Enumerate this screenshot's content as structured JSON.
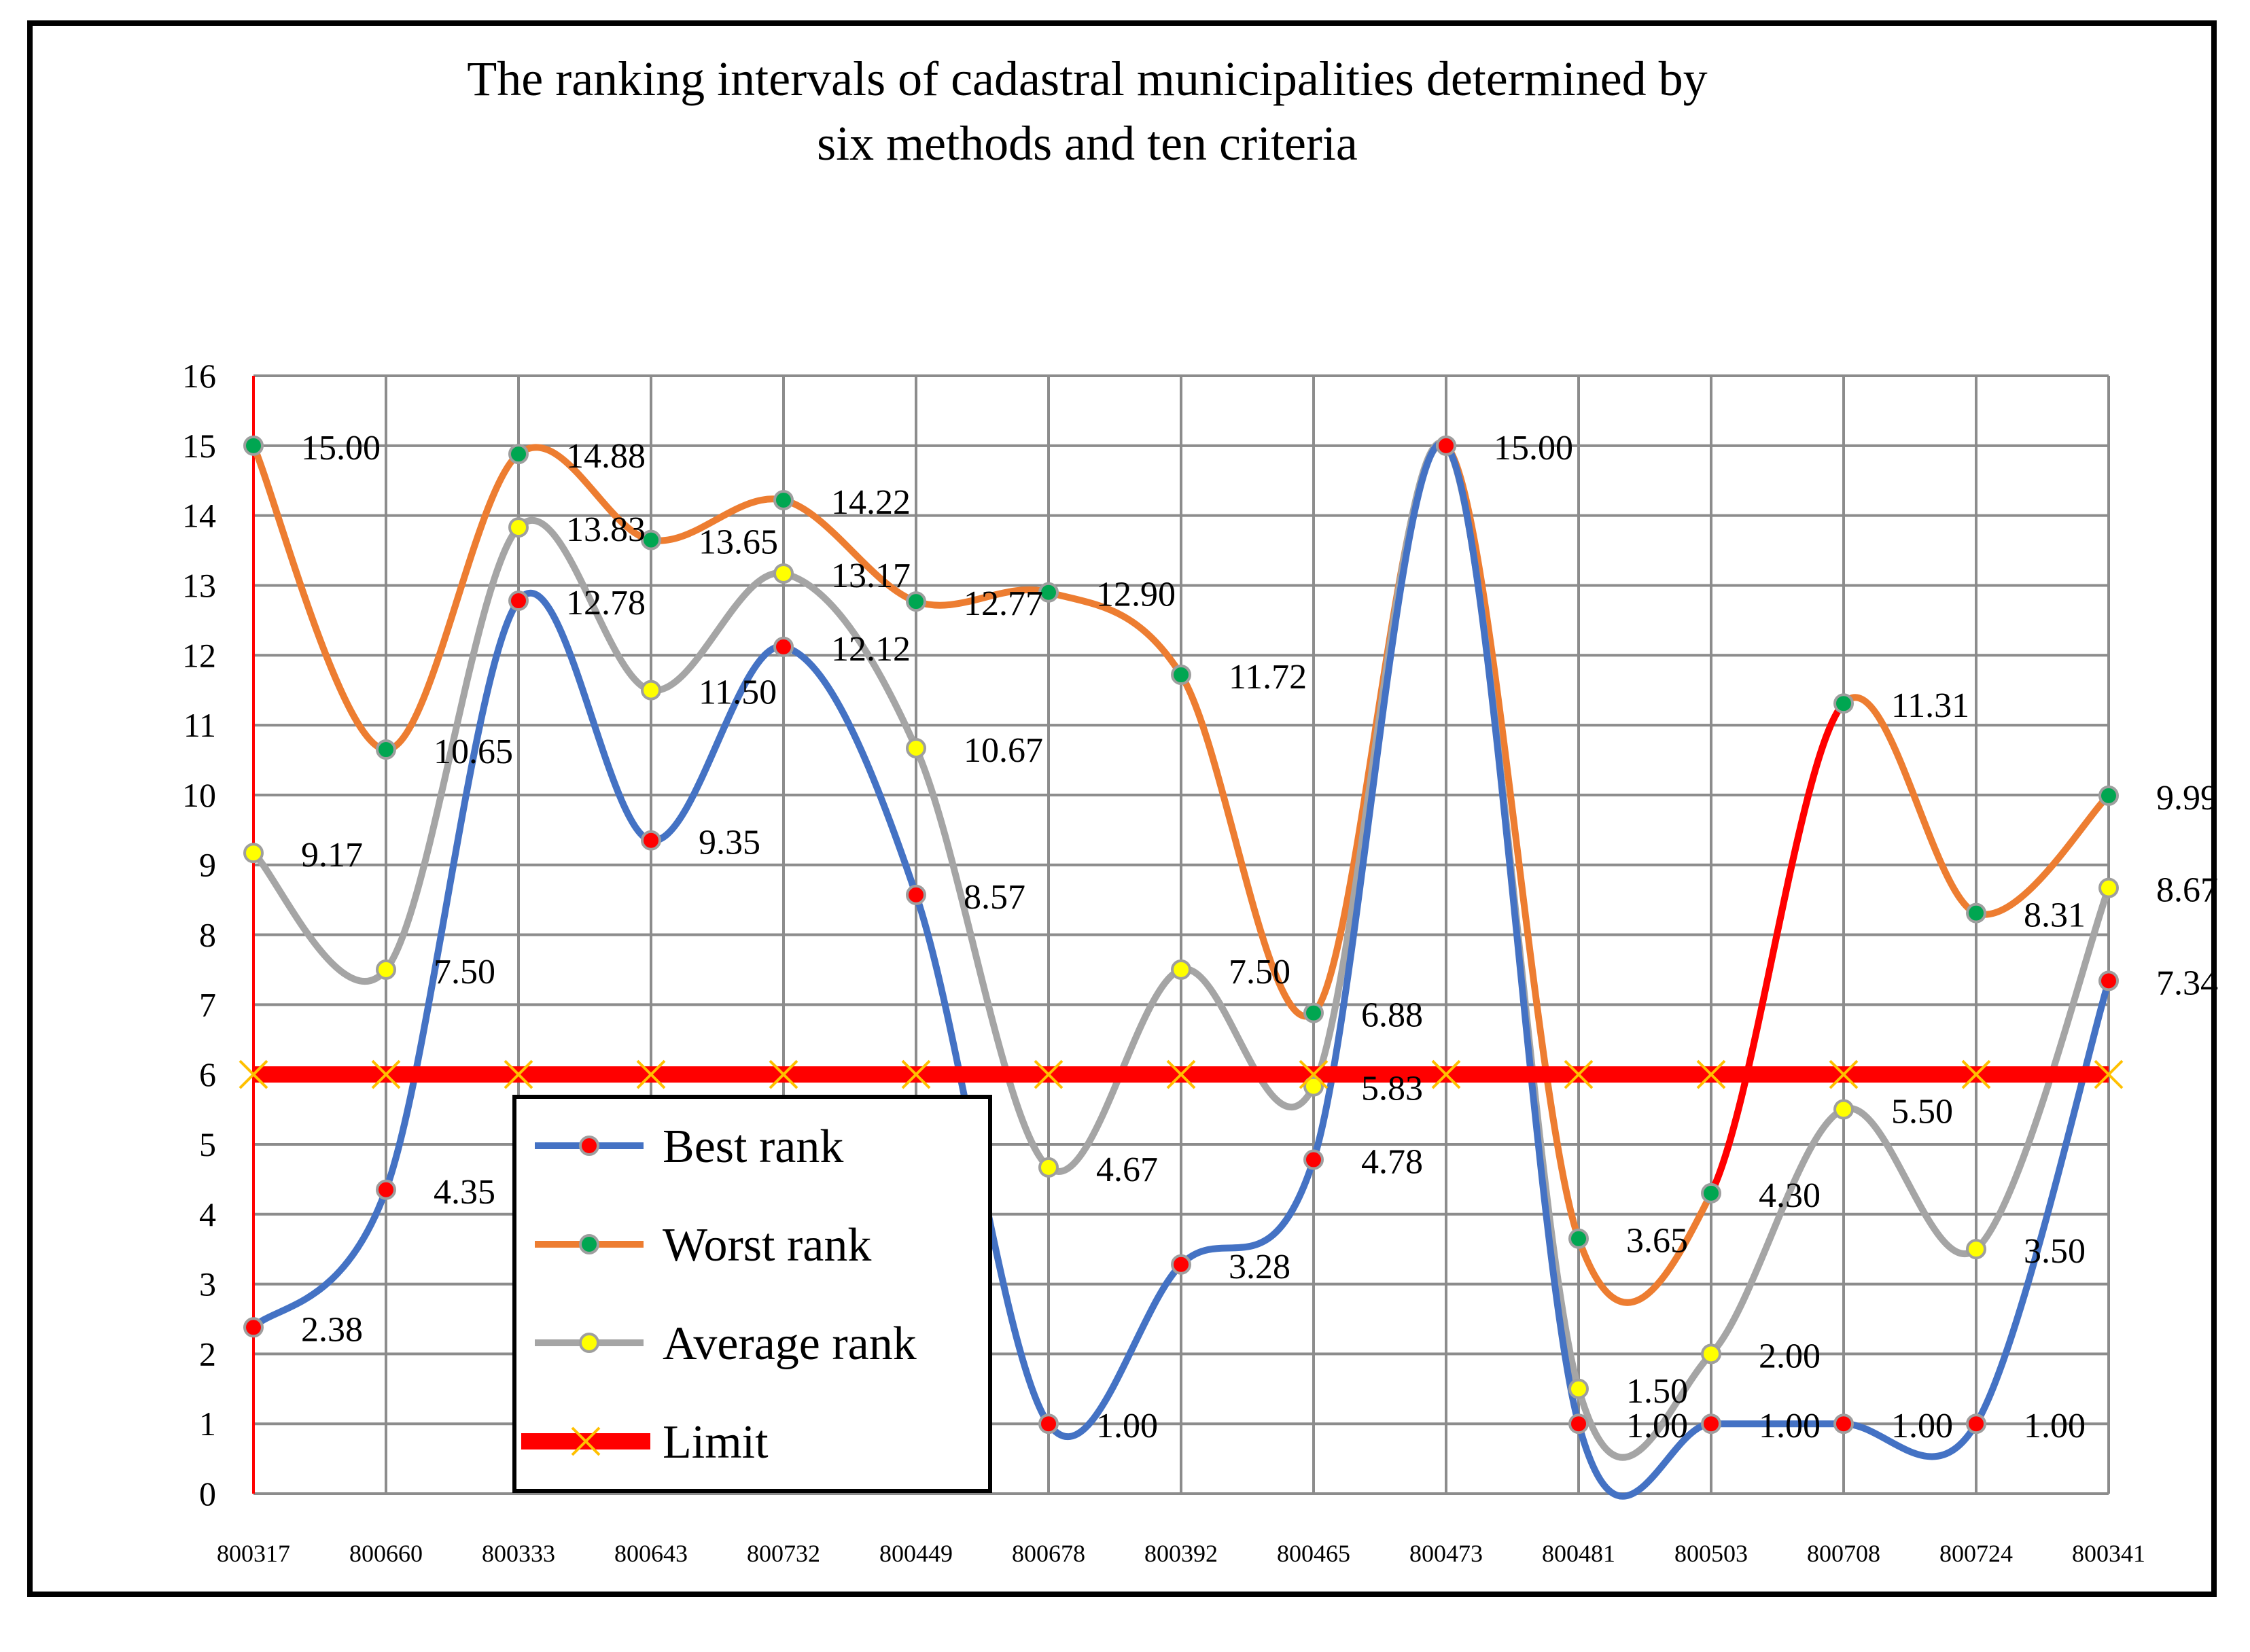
{
  "chart_data": {
    "type": "line",
    "title": "The ranking intervals of cadastral municipalities determined by",
    "title_line2": "six methods and ten criteria",
    "categories": [
      "800317",
      "800660",
      "800333",
      "800643",
      "800732",
      "800449",
      "800678",
      "800392",
      "800465",
      "800473",
      "800481",
      "800503",
      "800708",
      "800724",
      "800341"
    ],
    "ylim": [
      0,
      16
    ],
    "yticks": [
      "0",
      "1",
      "2",
      "3",
      "4",
      "5",
      "6",
      "7",
      "8",
      "9",
      "10",
      "11",
      "12",
      "13",
      "14",
      "15",
      "16"
    ],
    "grid": true,
    "legend_position": "center-left",
    "series": [
      {
        "name": "Best rank",
        "color": "#4472C4",
        "marker_color": "#FF0000",
        "values": [
          2.38,
          4.35,
          12.78,
          9.35,
          12.12,
          8.57,
          1.0,
          3.28,
          4.78,
          15.0,
          1.0,
          1.0,
          1.0,
          1.0,
          7.34
        ],
        "labels": [
          "2.38",
          "4.35",
          "12.78",
          "9.35",
          "12.12",
          "8.57",
          "1.00",
          "3.28",
          "4.78",
          "",
          "1.00",
          "1.00",
          "1.00",
          "1.00",
          "7.34"
        ]
      },
      {
        "name": "Worst rank",
        "color": "#ED7D31",
        "highlight_color": "#FF0000",
        "marker_color": "#00A651",
        "values": [
          15.0,
          10.65,
          14.88,
          13.65,
          14.22,
          12.77,
          12.9,
          11.72,
          6.88,
          15.0,
          3.65,
          4.3,
          11.31,
          8.31,
          9.99
        ],
        "labels": [
          "15.00",
          "10.65",
          "14.88",
          "13.65",
          "14.22",
          "12.77",
          "12.90",
          "11.72",
          "6.88",
          "15.00",
          "3.65",
          "4.30",
          "11.31",
          "8.31",
          "9.99"
        ]
      },
      {
        "name": "Average rank",
        "color": "#A5A5A5",
        "marker_color": "#FFFF00",
        "values": [
          9.17,
          7.5,
          13.83,
          11.5,
          13.17,
          10.67,
          4.67,
          7.5,
          5.83,
          15.0,
          1.5,
          2.0,
          5.5,
          3.5,
          8.67
        ],
        "labels": [
          "9.17",
          "7.50",
          "13.83",
          "11.50",
          "13.17",
          "10.67",
          "4.67",
          "7.50",
          "5.83",
          "",
          "1.50",
          "2.00",
          "5.50",
          "3.50",
          "8.67"
        ]
      },
      {
        "name": "Limit",
        "color": "#FF0000",
        "marker_color": "#FFC000",
        "values": [
          6,
          6,
          6,
          6,
          6,
          6,
          6,
          6,
          6,
          6,
          6,
          6,
          6,
          6,
          6
        ]
      }
    ]
  }
}
